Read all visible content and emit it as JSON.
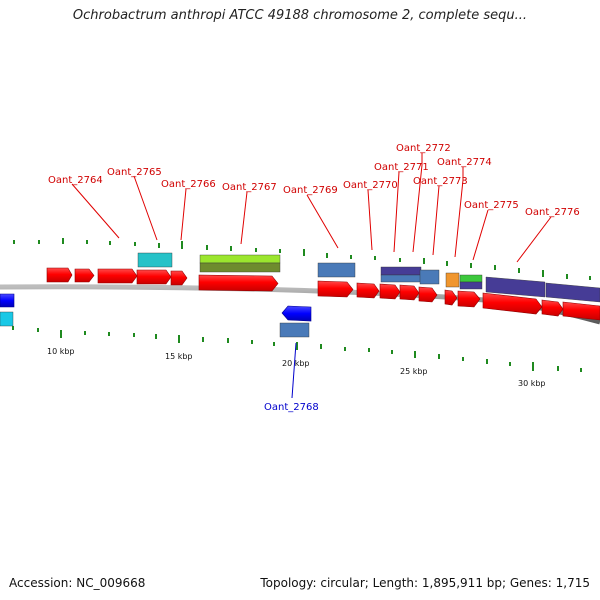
{
  "title": "Ochrobactrum anthropi ATCC 49188 chromosome 2, complete sequ...",
  "colors": {
    "forward_gene": "#ff0000",
    "reverse_gene": "#0000ff",
    "forward_label": "#d00000",
    "reverse_label": "#0000cc",
    "backbone": "#8c8c8c",
    "gc_tick": "#1f8a1f"
  },
  "scale_labels": [
    "10 kbp",
    "15 kbp",
    "20 kbp",
    "25 kbp",
    "30 kbp"
  ],
  "gene_labels": [
    {
      "id": "g2764",
      "text": "Oant_2764",
      "strand": "forward"
    },
    {
      "id": "g2765",
      "text": "Oant_2765",
      "strand": "forward"
    },
    {
      "id": "g2766",
      "text": "Oant_2766",
      "strand": "forward"
    },
    {
      "id": "g2767",
      "text": "Oant_2767",
      "strand": "forward"
    },
    {
      "id": "g2768",
      "text": "Oant_2768",
      "strand": "reverse"
    },
    {
      "id": "g2769",
      "text": "Oant_2769",
      "strand": "forward"
    },
    {
      "id": "g2770",
      "text": "Oant_2770",
      "strand": "forward"
    },
    {
      "id": "g2771",
      "text": "Oant_2771",
      "strand": "forward"
    },
    {
      "id": "g2772",
      "text": "Oant_2772",
      "strand": "forward"
    },
    {
      "id": "g2773",
      "text": "Oant_2773",
      "strand": "forward"
    },
    {
      "id": "g2774",
      "text": "Oant_2774",
      "strand": "forward"
    },
    {
      "id": "g2775",
      "text": "Oant_2775",
      "strand": "forward"
    },
    {
      "id": "g2776",
      "text": "Oant_2776",
      "strand": "forward"
    }
  ],
  "footer": {
    "accession": "Accession: NC_009668",
    "stats": "Topology: circular; Length: 1,895,911 bp; Genes: 1,715"
  }
}
